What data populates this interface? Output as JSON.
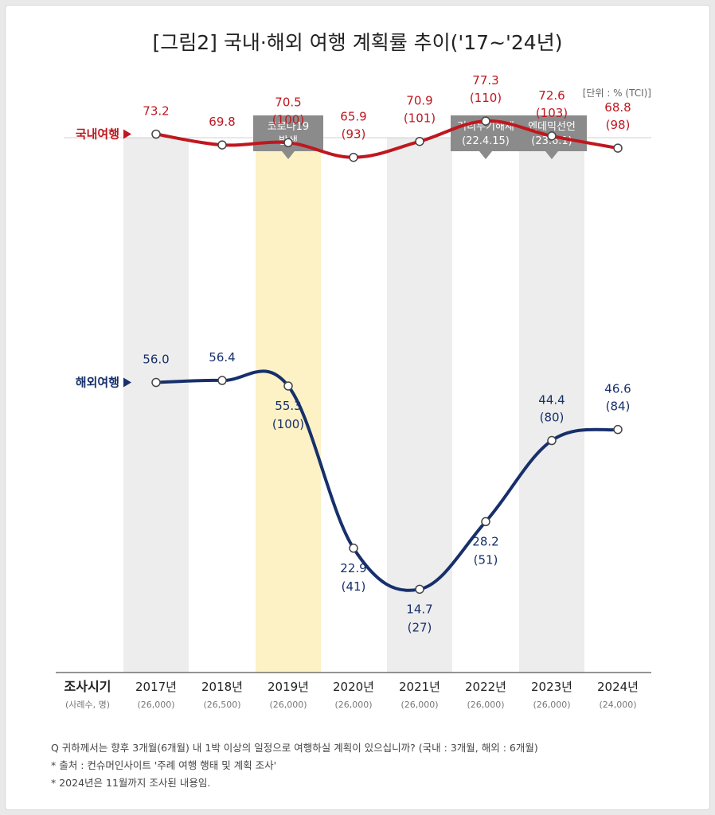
{
  "title": "[그림2] 국내·해외 여행 계획률 추이('17~'24년)",
  "unit": "[단위 : % (TCI)]",
  "axis_label": "조사시기",
  "axis_sublabel": "(사례수, 명)",
  "events": [
    {
      "line1": "코로나19",
      "line2": "발생",
      "year": "2019년"
    },
    {
      "line1": "거리두기해제",
      "line2": "(22.4.15)",
      "year": "2022년"
    },
    {
      "line1": "엔데믹선언",
      "line2": "(23.6.1)",
      "year": "2023년"
    }
  ],
  "notes": [
    "Q 귀하께서는 향후 3개월(6개월) 내 1박 이상의 일정으로 여행하실 계획이 있으십니까? (국내 : 3개월, 해외 : 6개월)",
    "* 출처 : 컨슈머인사이트 '주례 여행 행태 및 계획 조사'",
    "* 2024년은 11월까지 조사된 내용임."
  ],
  "colors": {
    "domestic": "#c0171f",
    "overseas": "#17306b",
    "highlight": "#fdf1c6",
    "band": "#ededed",
    "event_box": "#8b8b8b"
  },
  "chart_data": {
    "type": "line",
    "categories": [
      "2017년",
      "2018년",
      "2019년",
      "2020년",
      "2021년",
      "2022년",
      "2023년",
      "2024년"
    ],
    "sample_sizes": [
      "(26,000)",
      "(26,500)",
      "(26,000)",
      "(26,000)",
      "(26,000)",
      "(26,000)",
      "(26,000)",
      "(24,000)"
    ],
    "highlighted_category": "2019년",
    "shaded_categories": [
      "2017년",
      "2019년",
      "2021년",
      "2023년"
    ],
    "series": [
      {
        "name": "국내여행",
        "values": [
          73.2,
          69.8,
          70.5,
          65.9,
          70.9,
          77.3,
          72.6,
          68.8
        ],
        "labels": [
          "73.2",
          "69.8",
          "70.5",
          "65.9",
          "70.9",
          "77.3",
          "72.6",
          "68.8"
        ],
        "index_labels": [
          "",
          "",
          "(100)",
          "(93)",
          "(101)",
          "(110)",
          "(103)",
          "(98)"
        ]
      },
      {
        "name": "해외여행",
        "values": [
          56.0,
          56.4,
          55.3,
          22.9,
          14.7,
          28.2,
          44.4,
          46.6
        ],
        "labels": [
          "56.0",
          "56.4",
          "55.3",
          "22.9",
          "14.7",
          "28.2",
          "44.4",
          "46.6"
        ],
        "index_labels": [
          "",
          "",
          "(100)",
          "(41)",
          "(27)",
          "(51)",
          "(80)",
          "(84)"
        ]
      }
    ]
  }
}
